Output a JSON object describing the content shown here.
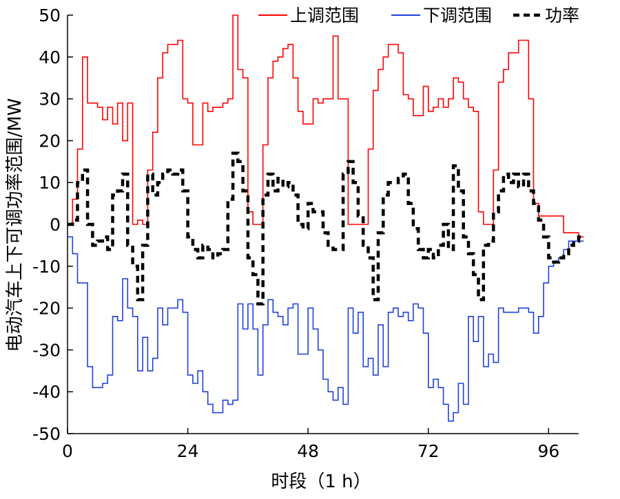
{
  "chart_data": {
    "type": "line",
    "title": "",
    "xlabel": "时段（1 h）",
    "ylabel": "电动汽车上下可调功率范围/MW",
    "xlim": [
      0,
      102
    ],
    "ylim": [
      -50,
      50
    ],
    "xticks": [
      0,
      24,
      48,
      72,
      96
    ],
    "yticks": [
      -50,
      -40,
      -30,
      -20,
      -10,
      0,
      10,
      20,
      30,
      40,
      50
    ],
    "grid": false,
    "legend_position": "top",
    "series": [
      {
        "name": "上调范围",
        "color": "#ff0000",
        "style": "step",
        "values": [
          0,
          6,
          18,
          40,
          29,
          29,
          28,
          25,
          28,
          24,
          29,
          20,
          29,
          0,
          1,
          0,
          13,
          22,
          35,
          41,
          43,
          43,
          44,
          30,
          29,
          19,
          19,
          29,
          27,
          28,
          28,
          29,
          30,
          50,
          37,
          35,
          3,
          0,
          0,
          19,
          35,
          39,
          40,
          42,
          43,
          35,
          27,
          24,
          24,
          30,
          29,
          30,
          30,
          45,
          30,
          30,
          0,
          0,
          0,
          0,
          18,
          32,
          37,
          40,
          43,
          43,
          41,
          31,
          30,
          26,
          26,
          33,
          27,
          28,
          30,
          28,
          30,
          35,
          34,
          30,
          28,
          27,
          3,
          0,
          0,
          13,
          34,
          37,
          41,
          41,
          44,
          44,
          30,
          5,
          2,
          2,
          2,
          2,
          2,
          -2,
          -2,
          -2,
          -3
        ]
      },
      {
        "name": "下调范围",
        "color": "#1f3fdc",
        "style": "step",
        "values": [
          -3,
          -7,
          -14,
          -14,
          -34,
          -39,
          -39,
          -38,
          -36,
          -22,
          -23,
          -13,
          -20,
          -22,
          -35,
          -27,
          -35,
          -32,
          -20,
          -24,
          -20,
          -20,
          -18,
          -21,
          -36,
          -38,
          -35,
          -40,
          -43,
          -45,
          -45,
          -42,
          -43,
          -42,
          -19,
          -25,
          -19,
          -25,
          -36,
          -24,
          -18,
          -21,
          -22,
          -24,
          -20,
          -19,
          -31,
          -31,
          -20,
          -25,
          -30,
          -37,
          -40,
          -42,
          -39,
          -43,
          -20,
          -26,
          -21,
          -34,
          -32,
          -36,
          -24,
          -34,
          -21,
          -20,
          -22,
          -21,
          -23,
          -19,
          -20,
          -26,
          -39,
          -37,
          -39,
          -43,
          -47,
          -45,
          -38,
          -43,
          -22,
          -28,
          -22,
          -34,
          -31,
          -33,
          -20,
          -21,
          -21,
          -21,
          -20,
          -20,
          -21,
          -26,
          -22,
          -14,
          -10,
          -9,
          -8,
          -6,
          -4,
          -4,
          -4
        ]
      },
      {
        "name": "功率",
        "color": "#000000",
        "style": "dashed",
        "values": [
          0,
          1,
          10,
          13,
          0,
          -5,
          -4,
          -3,
          -6,
          7,
          8,
          12,
          -5,
          -10,
          -18,
          -5,
          12,
          7,
          10,
          12,
          13,
          12,
          13,
          8,
          -3,
          -6,
          -8,
          -5,
          -6,
          -8,
          -7,
          -6,
          6,
          17,
          15,
          8,
          -8,
          -12,
          -19,
          7,
          12,
          8,
          11,
          9,
          10,
          7,
          0,
          -1,
          5,
          3,
          3,
          -2,
          -5,
          -6,
          -6,
          12,
          15,
          10,
          2,
          -5,
          -8,
          -18,
          -2,
          7,
          10,
          10,
          11,
          12,
          5,
          -1,
          -6,
          -8,
          -6,
          -8,
          -5,
          0,
          -6,
          14,
          8,
          -3,
          -7,
          -12,
          -18,
          -5,
          -4,
          3,
          8,
          12,
          10,
          12,
          9,
          12,
          8,
          5,
          1,
          -3,
          -8,
          -9,
          -8,
          -7,
          -5,
          -4,
          -3
        ]
      }
    ]
  }
}
